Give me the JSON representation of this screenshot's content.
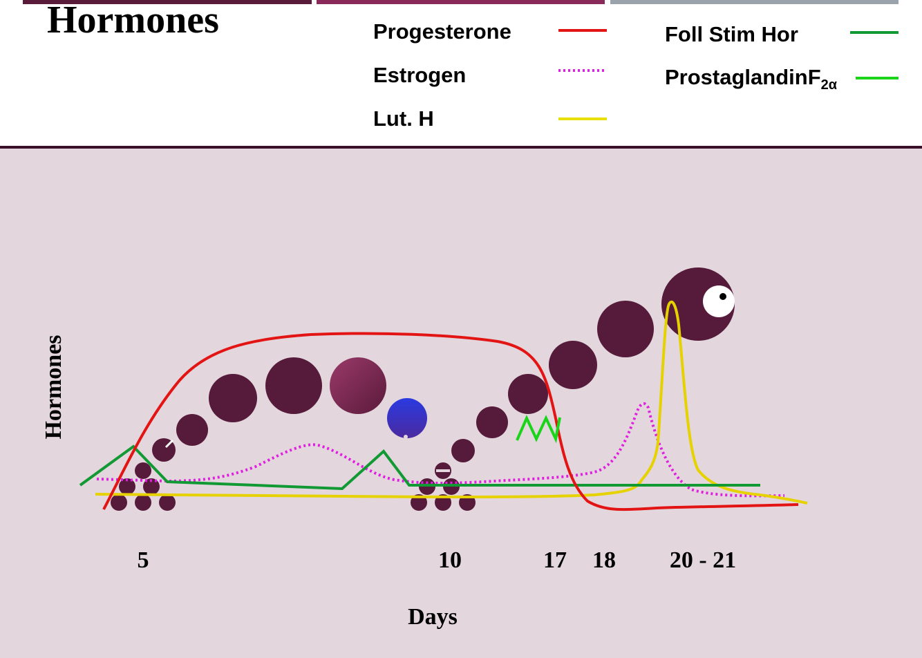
{
  "title": "Hormones",
  "legend": {
    "items": [
      {
        "label": "Progesterone",
        "color": "#e31414",
        "style": "solid"
      },
      {
        "label": "Estrogen",
        "color": "#e020e0",
        "style": "dotted"
      },
      {
        "label": "Lut. H",
        "color": "#e8e000",
        "style": "solid"
      },
      {
        "label": "Foll Stim Hor",
        "color": "#119933",
        "style": "solid"
      },
      {
        "label": "ProstaglandinF",
        "subscript": "2α",
        "color": "#1ad41a",
        "style": "solid"
      }
    ]
  },
  "axes": {
    "y_label": "Hormones",
    "x_label": "Days",
    "x_ticks": [
      "5",
      "10",
      "17",
      "18",
      "20 - 21"
    ]
  },
  "colors": {
    "header_bar_1": "#5a1a3a",
    "header_bar_2": "#8a2a5a",
    "header_bar_3": "#9aa3ab",
    "plot_background": "#e3d6dc",
    "follicle": "#561a3a",
    "dominant_follicle": "#8a2a5a",
    "corpus_luteum": "#2f2ad8"
  }
}
